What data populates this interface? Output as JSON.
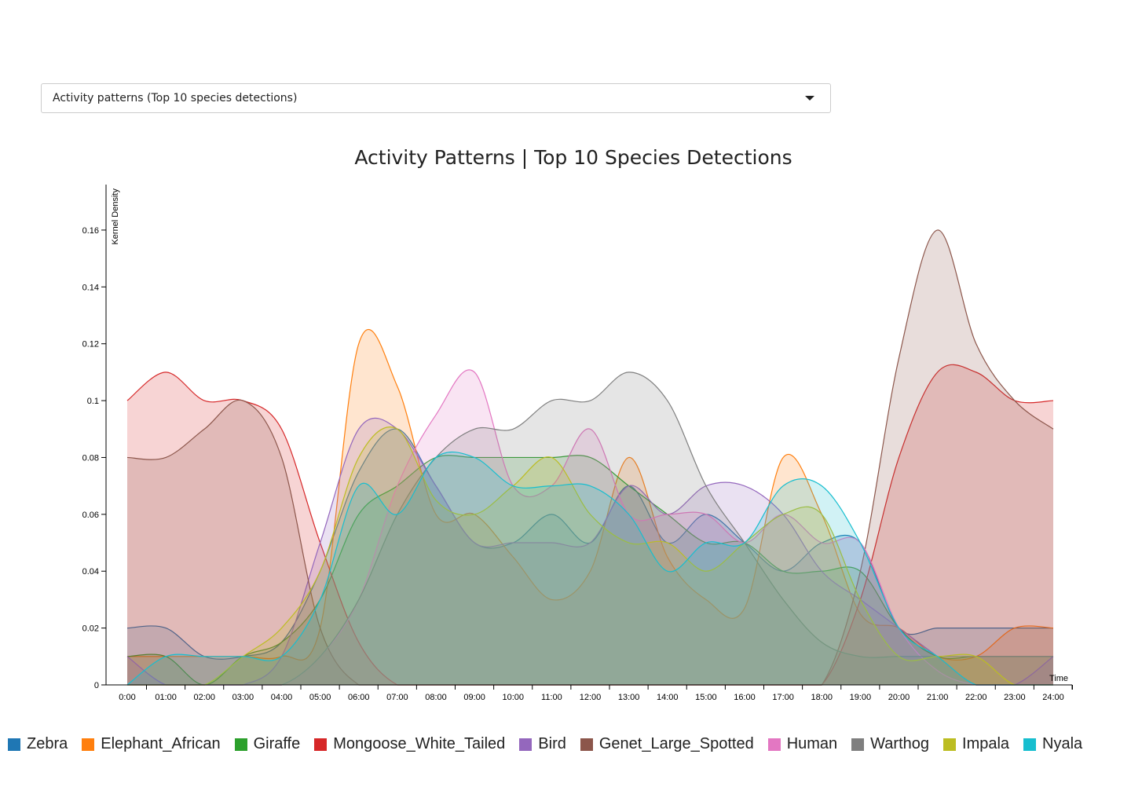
{
  "dropdown": {
    "selected": "Activity patterns (Top 10 species detections)"
  },
  "chart_data": {
    "type": "area",
    "title": "Activity Patterns | Top 10 Species Detections",
    "xlabel": "Time",
    "ylabel": "Kernel Density",
    "x": [
      "0:00",
      "01:00",
      "02:00",
      "03:00",
      "04:00",
      "05:00",
      "06:00",
      "07:00",
      "08:00",
      "09:00",
      "10:00",
      "11:00",
      "12:00",
      "13:00",
      "14:00",
      "15:00",
      "16:00",
      "17:00",
      "18:00",
      "19:00",
      "20:00",
      "21:00",
      "22:00",
      "23:00",
      "24:00"
    ],
    "yticks": [
      "0",
      "0.02",
      "0.04",
      "0.06",
      "0.08",
      "0.1",
      "0.12",
      "0.14",
      "0.16"
    ],
    "ylim": [
      0,
      0.176
    ],
    "legend": "bottom",
    "grid": false,
    "series": [
      {
        "name": "Zebra",
        "color": "#1f77b4",
        "values": [
          0.02,
          0.02,
          0.01,
          0.01,
          0.015,
          0.04,
          0.075,
          0.09,
          0.07,
          0.05,
          0.05,
          0.06,
          0.05,
          0.07,
          0.05,
          0.06,
          0.05,
          0.04,
          0.05,
          0.05,
          0.02,
          0.02,
          0.02,
          0.02,
          0.02
        ]
      },
      {
        "name": "Elephant_African",
        "color": "#ff7f0e",
        "values": [
          0.01,
          0.01,
          0.01,
          0.01,
          0.01,
          0.02,
          0.12,
          0.105,
          0.06,
          0.06,
          0.045,
          0.03,
          0.04,
          0.08,
          0.045,
          0.03,
          0.027,
          0.08,
          0.06,
          0.025,
          0.02,
          0.01,
          0.01,
          0.02,
          0.02
        ]
      },
      {
        "name": "Giraffe",
        "color": "#2ca02c",
        "values": [
          0.01,
          0.01,
          0,
          0.01,
          0.015,
          0.03,
          0.06,
          0.07,
          0.08,
          0.08,
          0.08,
          0.08,
          0.08,
          0.07,
          0.06,
          0.05,
          0.05,
          0.04,
          0.04,
          0.04,
          0.02,
          0.01,
          0.01,
          0.01,
          0.01
        ]
      },
      {
        "name": "Mongoose_White_Tailed",
        "color": "#d62728",
        "values": [
          0.1,
          0.11,
          0.1,
          0.1,
          0.09,
          0.05,
          0.015,
          0,
          0,
          0,
          0,
          0,
          0,
          0,
          0,
          0,
          0,
          0,
          0,
          0.03,
          0.08,
          0.11,
          0.11,
          0.1,
          0.1
        ]
      },
      {
        "name": "Bird",
        "color": "#9467bd",
        "values": [
          0.01,
          0,
          0,
          0,
          0.01,
          0.05,
          0.09,
          0.09,
          0.07,
          0.05,
          0.05,
          0.05,
          0.05,
          0.07,
          0.06,
          0.07,
          0.07,
          0.06,
          0.04,
          0.03,
          0.02,
          0.01,
          0,
          0,
          0.01
        ]
      },
      {
        "name": "Genet_Large_Spotted",
        "color": "#8c564b",
        "values": [
          0.08,
          0.08,
          0.09,
          0.1,
          0.08,
          0.02,
          0,
          0,
          0,
          0,
          0,
          0,
          0,
          0,
          0,
          0,
          0,
          0,
          0,
          0.04,
          0.115,
          0.16,
          0.12,
          0.1,
          0.09
        ]
      },
      {
        "name": "Human",
        "color": "#e377c2",
        "values": [
          0,
          0,
          0,
          0,
          0,
          0.01,
          0.03,
          0.07,
          0.095,
          0.11,
          0.07,
          0.07,
          0.09,
          0.06,
          0.06,
          0.06,
          0.05,
          0.06,
          0.05,
          0.05,
          0.02,
          0.005,
          0,
          0,
          0
        ]
      },
      {
        "name": "Warthog",
        "color": "#7f7f7f",
        "values": [
          0,
          0,
          0,
          0,
          0,
          0.01,
          0.03,
          0.06,
          0.08,
          0.09,
          0.09,
          0.1,
          0.1,
          0.11,
          0.1,
          0.07,
          0.05,
          0.03,
          0.015,
          0.01,
          0.01,
          0.01,
          0.01,
          0.01,
          0.01
        ]
      },
      {
        "name": "Impala",
        "color": "#bcbd22",
        "values": [
          0,
          0,
          0,
          0.01,
          0.02,
          0.04,
          0.08,
          0.09,
          0.065,
          0.06,
          0.07,
          0.08,
          0.06,
          0.05,
          0.05,
          0.04,
          0.05,
          0.06,
          0.06,
          0.03,
          0.01,
          0.01,
          0.01,
          0,
          0
        ]
      },
      {
        "name": "Nyala",
        "color": "#17becf",
        "values": [
          0,
          0.01,
          0.01,
          0.01,
          0.01,
          0.03,
          0.07,
          0.06,
          0.08,
          0.08,
          0.07,
          0.07,
          0.07,
          0.06,
          0.04,
          0.05,
          0.05,
          0.07,
          0.07,
          0.05,
          0.02,
          0.01,
          0,
          0,
          0
        ]
      }
    ]
  }
}
